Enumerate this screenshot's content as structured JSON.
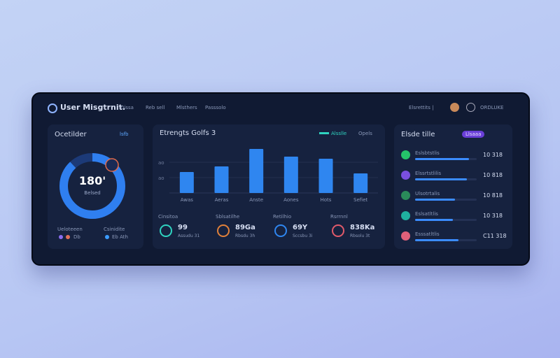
{
  "nav": {
    "brand": "User Misgtrnit.",
    "links": [
      "Dissa",
      "Reb sell",
      "Mlsthers",
      "Passsolo"
    ],
    "status": "Elsrettits |",
    "user": "ORDLUKE"
  },
  "overview": {
    "title": "Ocetilder",
    "badge": "lsfb",
    "gauge": {
      "value": "180'",
      "label": "Belsed",
      "percent": 88
    },
    "legend": [
      {
        "title": "Ueloteeen",
        "label": "Db"
      },
      {
        "title": "Csinidite",
        "label": "Eb Ath"
      }
    ]
  },
  "chart_data": {
    "type": "bar",
    "title": "Etrengts Golfs 3",
    "legend": [
      "Alsslle",
      "Opels"
    ],
    "categories": [
      "Awas",
      "Aeras",
      "Anste",
      "Aones",
      "Hots",
      "Sefiet"
    ],
    "values": [
      30,
      38,
      63,
      52,
      49,
      28
    ],
    "color": "#2f86f0",
    "ylim": [
      0,
      70
    ],
    "yticks": [
      {
        "value": 22,
        "label": "ao"
      },
      {
        "value": 44,
        "label": "ao"
      }
    ]
  },
  "stats": [
    {
      "label": "Cinsitoa",
      "value": "99",
      "sub": "Assudu 31"
    },
    {
      "label": "Sblsatilhe",
      "value": "89Ga",
      "sub": "Rbsdu 3h"
    },
    {
      "label": "Retilhio",
      "value": "69Y",
      "sub": "Sccsbu 3i"
    },
    {
      "label": "Rsrrnnl",
      "value": "838Ka",
      "sub": "Rbsolu 3t"
    }
  ],
  "list": {
    "title": "Elsde tille",
    "badge": "Llsaaa",
    "rows": [
      {
        "label": "Eslsbtstlis",
        "value": "10 318",
        "percent": 88
      },
      {
        "label": "Elssrtstlilis",
        "value": "10 818",
        "percent": 84
      },
      {
        "label": "Ulsotrtalis",
        "value": "10 818",
        "percent": 65
      },
      {
        "label": "Eslsatltlis",
        "value": "10 318",
        "percent": 61
      },
      {
        "label": "Esssatltlis",
        "value": "C11 318",
        "percent": 70
      }
    ]
  }
}
